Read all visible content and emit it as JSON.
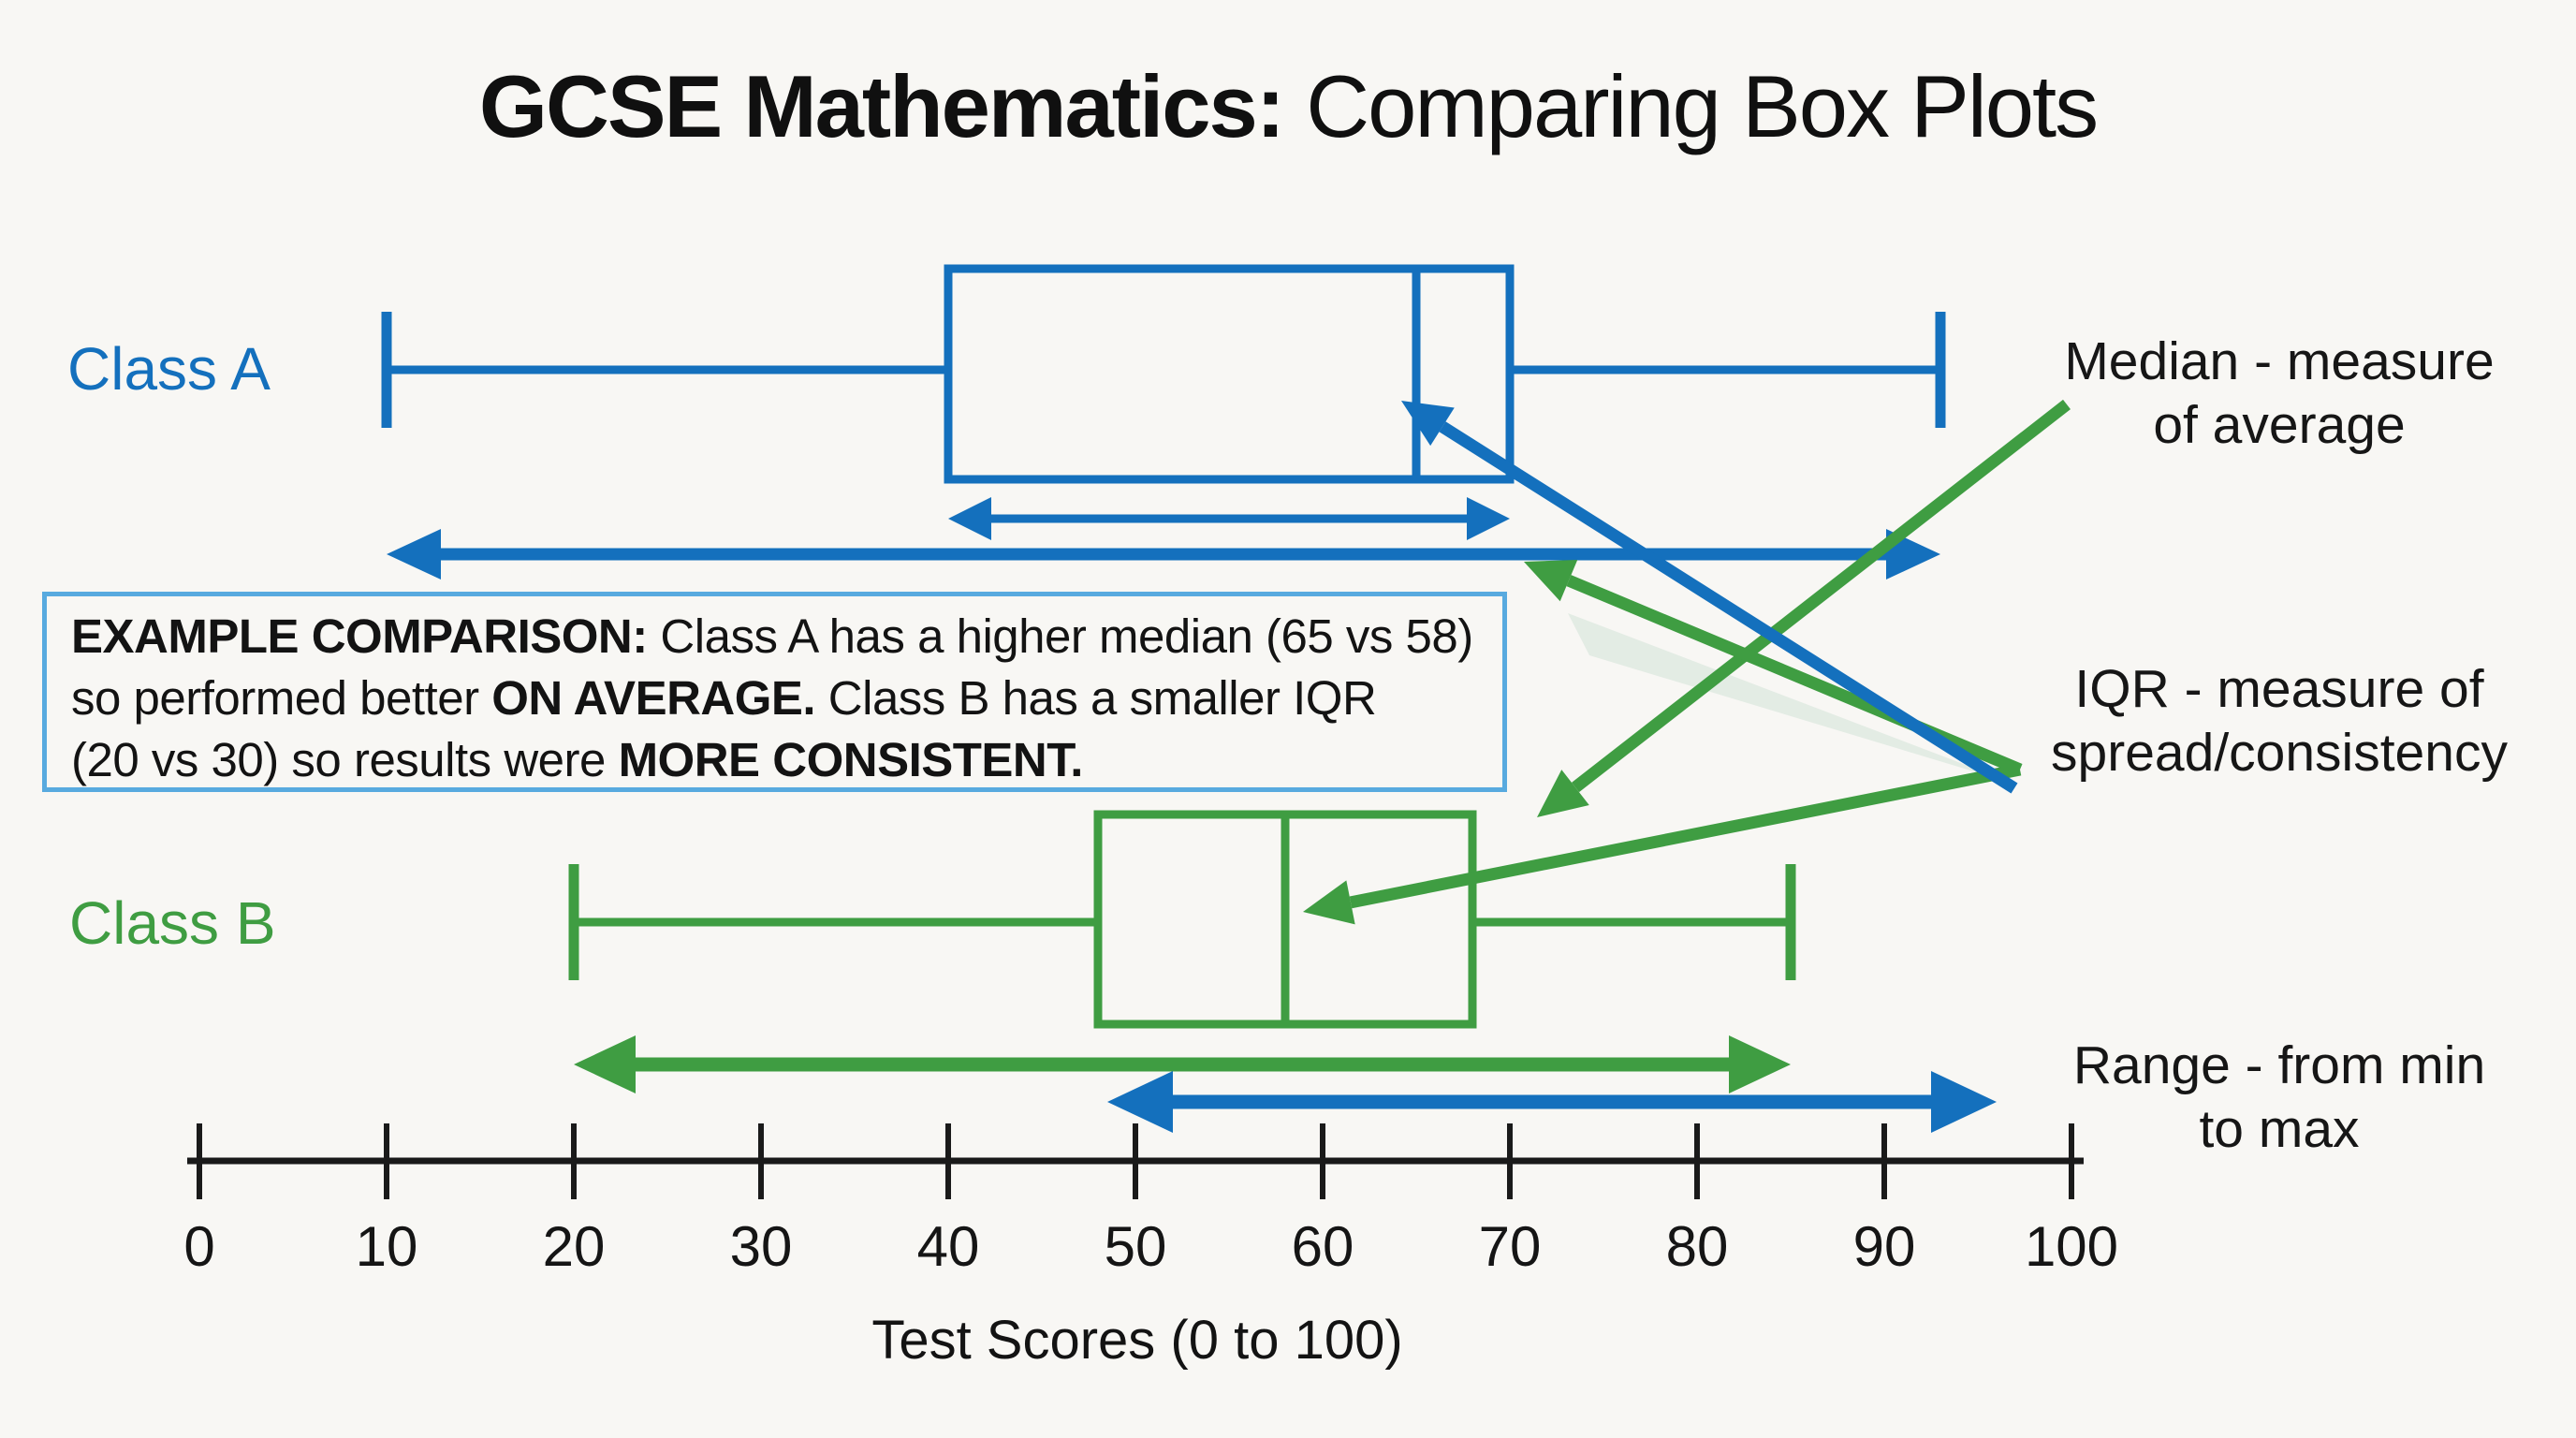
{
  "title": {
    "bold": "GCSE Mathematics:",
    "rest": " Comparing Box Plots"
  },
  "series_labels": {
    "class_a": "Class A",
    "class_b": "Class B"
  },
  "colors": {
    "class_a": "#1470bd",
    "class_b": "#3f9d42",
    "callout_border": "#58aadf",
    "axis": "#1a1a1a",
    "background": "#f8f7f4"
  },
  "comparison": {
    "line1_bold": "EXAMPLE COMPARISON:",
    "line1_rest": " Class A has a higher median (65 vs 58)",
    "line2_pre": "so performed better ",
    "line2_bold": "ON AVERAGE.",
    "line2_rest": " Class B has a smaller IQR",
    "line3_pre": "(20 vs 30) so results were ",
    "line3_bold": "MORE CONSISTENT."
  },
  "annotations": {
    "median": {
      "line1": "Median - measure",
      "line2": "of average"
    },
    "iqr": {
      "line1": "IQR - measure of",
      "line2": "spread/consistency"
    },
    "range": {
      "line1": "Range - from min",
      "line2": "to max"
    }
  },
  "chart_data": {
    "type": "boxplot",
    "title": "GCSE Mathematics: Comparing Box Plots",
    "xlabel": "Test Scores (0 to 100)",
    "axis": {
      "min": 0,
      "max": 100,
      "step": 10,
      "tick_labels": [
        "0",
        "10",
        "20",
        "30",
        "40",
        "50",
        "60",
        "70",
        "80",
        "90",
        "100"
      ]
    },
    "series": [
      {
        "name": "Class A",
        "color_key": "class_a",
        "min": 10,
        "q1": 40,
        "median": 65,
        "q3": 70,
        "max": 93
      },
      {
        "name": "Class B",
        "color_key": "class_b",
        "min": 20,
        "q1": 48,
        "median": 58,
        "q3": 68,
        "max": 85
      }
    ],
    "stated_values": {
      "median_a": 65,
      "median_b": 58,
      "iqr_a": 30,
      "iqr_b": 20
    },
    "arrows": [
      {
        "name": "class-a-iqr-arrow",
        "color_key": "class_a",
        "from": 40,
        "to": 70
      },
      {
        "name": "class-a-range-arrow",
        "color_key": "class_a",
        "from": 10,
        "to": 93
      },
      {
        "name": "class-b-range-arrow",
        "color_key": "class_b",
        "from": 20,
        "to": 85
      },
      {
        "name": "lower-range-arrow",
        "color_key": "class_a",
        "from": 48.5,
        "to": 96
      }
    ]
  }
}
